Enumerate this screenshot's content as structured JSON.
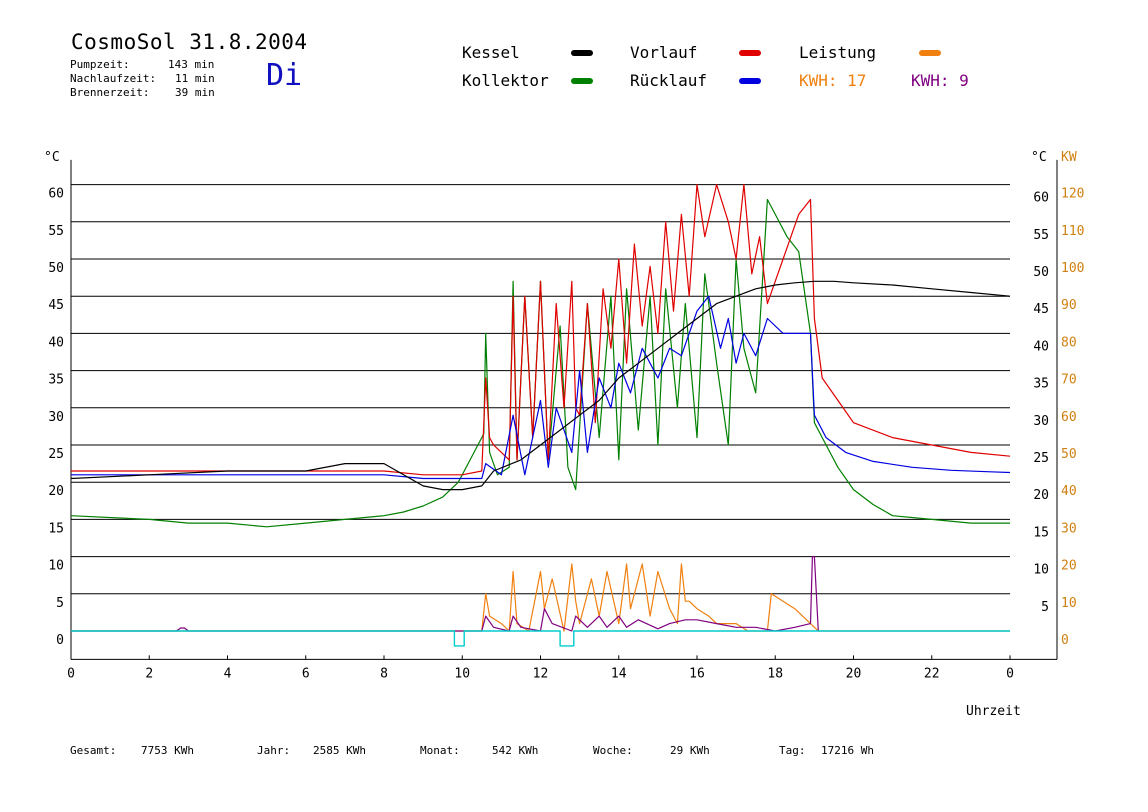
{
  "header": {
    "title": "CosmoSol 31.8.2004",
    "day": "Di",
    "stats": [
      {
        "label": "Pumpzeit:",
        "value": "143 min"
      },
      {
        "label": "Nachlaufzeit:",
        "value": "11 min"
      },
      {
        "label": "Brennerzeit:",
        "value": "39 min"
      }
    ]
  },
  "legend": {
    "kessel": "Kessel",
    "kollektor": "Kollektor",
    "vorlauf": "Vorlauf",
    "ruecklauf": "Rücklauf",
    "leistung": "Leistung",
    "kwh1": "KWH: 17",
    "kwh2": "KWH: 9"
  },
  "footer": {
    "gesamt_label": "Gesamt:",
    "gesamt_value": "7753 KWh",
    "jahr_label": "Jahr:",
    "jahr_value": "2585 KWh",
    "monat_label": "Monat:",
    "monat_value": "542 KWh",
    "woche_label": "Woche:",
    "woche_value": "29 KWh",
    "tag_label": "Tag:",
    "tag_value": "17216 Wh"
  },
  "colors": {
    "kessel": "#000000",
    "kollektor": "#008000",
    "vorlauf": "#e00000",
    "ruecklauf": "#0000e0",
    "leistung": "#f08010",
    "kwh2": "#800080",
    "pump": "#00cccc",
    "day": "#1010c0"
  },
  "chart_data": {
    "type": "line",
    "xlabel": "Uhrzeit",
    "ylabel_left": "°C",
    "ylabel_right": "°C",
    "ylabel_right2": "KW",
    "xlim": [
      0,
      24
    ],
    "ylim": [
      -3,
      64
    ],
    "x_ticks": [
      "0",
      "2",
      "4",
      "6",
      "8",
      "10",
      "12",
      "14",
      "16",
      "18",
      "20",
      "22",
      "0"
    ],
    "y_ticks_left": [
      0,
      5,
      10,
      15,
      20,
      25,
      30,
      35,
      40,
      45,
      50,
      55,
      60
    ],
    "y_ticks_right": [
      5,
      10,
      15,
      20,
      25,
      30,
      35,
      40,
      45,
      50,
      55,
      60
    ],
    "y_ticks_kw": [
      0,
      10,
      20,
      30,
      40,
      50,
      60,
      70,
      80,
      90,
      100,
      110,
      120
    ],
    "gridlines": [
      5,
      10,
      15,
      20,
      25,
      30,
      35,
      40,
      45,
      50,
      55,
      60
    ],
    "series": [
      {
        "name": "Kollektor",
        "color": "#008000",
        "x": [
          0,
          2,
          3,
          4,
          5,
          6,
          7,
          8,
          8.5,
          9,
          9.5,
          9.9,
          10.2,
          10.4,
          10.55,
          10.6,
          10.7,
          10.9,
          11.2,
          11.3,
          11.4,
          11.6,
          11.8,
          12,
          12.2,
          12.5,
          12.7,
          12.9,
          13.2,
          13.5,
          13.8,
          14,
          14.2,
          14.5,
          14.8,
          15,
          15.2,
          15.5,
          15.7,
          16,
          16.2,
          16.5,
          16.8,
          17,
          17.2,
          17.5,
          17.8,
          18,
          18.3,
          18.6,
          18.9,
          19,
          19.2,
          19.6,
          20,
          20.5,
          21,
          22,
          23,
          24
        ],
        "y": [
          15.5,
          15,
          14.5,
          14.5,
          14,
          14.5,
          15,
          15.5,
          16,
          16.8,
          18,
          20,
          23,
          25,
          26.5,
          40,
          24,
          21,
          22,
          47,
          23,
          45,
          26,
          47,
          23,
          41,
          22,
          19,
          44,
          26,
          45,
          23,
          46,
          27,
          45,
          25,
          46,
          30,
          44,
          26,
          48,
          36,
          25,
          50,
          38,
          32,
          58,
          56,
          53,
          51,
          40,
          28,
          26,
          22,
          19,
          17,
          15.5,
          15,
          14.5,
          14.5
        ]
      },
      {
        "name": "Vorlauf",
        "color": "#e00000",
        "x": [
          0,
          4,
          8,
          9,
          10,
          10.5,
          10.6,
          10.7,
          10.8,
          11,
          11.2,
          11.3,
          11.4,
          11.6,
          11.8,
          12,
          12.2,
          12.4,
          12.6,
          12.8,
          12.9,
          13,
          13.2,
          13.4,
          13.6,
          13.8,
          14,
          14.2,
          14.4,
          14.6,
          14.8,
          15,
          15.2,
          15.4,
          15.6,
          15.8,
          16,
          16.2,
          16.5,
          16.8,
          17,
          17.2,
          17.4,
          17.6,
          17.8,
          18.2,
          18.6,
          18.9,
          19,
          19.2,
          19.6,
          20,
          21,
          22,
          23,
          24
        ],
        "y": [
          21.5,
          21.5,
          21.5,
          21,
          21,
          21.5,
          34,
          26,
          25,
          24,
          23,
          45,
          23,
          45,
          26,
          47,
          23,
          44,
          30,
          47,
          30,
          29,
          44,
          28,
          46,
          38,
          50,
          36,
          52,
          41,
          49,
          40,
          55,
          43,
          56,
          45,
          60,
          53,
          60,
          55,
          50,
          60,
          48,
          53,
          44,
          50,
          56,
          58,
          42,
          34,
          31,
          28,
          26,
          25,
          24,
          23.5
        ]
      },
      {
        "name": "Rücklauf",
        "color": "#0000e0",
        "x": [
          0,
          4,
          8,
          9,
          10,
          10.5,
          10.6,
          11,
          11.3,
          11.6,
          12,
          12.2,
          12.4,
          12.6,
          12.8,
          13,
          13.2,
          13.5,
          13.8,
          14,
          14.3,
          14.6,
          15,
          15.3,
          15.6,
          16,
          16.3,
          16.6,
          16.8,
          17,
          17.2,
          17.5,
          17.8,
          18.2,
          18.6,
          18.9,
          19,
          19.3,
          19.8,
          20.5,
          21.5,
          22.5,
          23.5,
          24
        ],
        "y": [
          21,
          21,
          21,
          20.5,
          20.5,
          20.5,
          22.5,
          21,
          29,
          21,
          31,
          22,
          30,
          27,
          24,
          35,
          24,
          34,
          30,
          36,
          32,
          38,
          34,
          38,
          37,
          43,
          45,
          38,
          42,
          36,
          40,
          37,
          42,
          40,
          40,
          40,
          29,
          26,
          24,
          22.8,
          22,
          21.6,
          21.4,
          21.3
        ]
      },
      {
        "name": "Kessel",
        "color": "#000000",
        "x": [
          0,
          2,
          4,
          6,
          7,
          8,
          9,
          9.5,
          10,
          10.5,
          10.8,
          11.5,
          12,
          12.5,
          13,
          13.5,
          14,
          14.5,
          15,
          15.5,
          16,
          16.5,
          17,
          17.5,
          18,
          18.5,
          19,
          19.5,
          20,
          21,
          22,
          23,
          24
        ],
        "y": [
          20.5,
          21,
          21.5,
          21.5,
          22.5,
          22.5,
          19.5,
          19,
          19,
          19.5,
          21.5,
          23,
          25,
          27,
          29,
          31,
          34,
          36,
          38,
          40,
          42,
          44,
          45,
          46,
          46.5,
          46.8,
          47,
          47,
          46.8,
          46.5,
          46,
          45.5,
          45
        ]
      },
      {
        "name": "Leistung",
        "color": "#f08010",
        "x": [
          0,
          10.5,
          10.6,
          10.7,
          11,
          11.2,
          11.3,
          11.4,
          11.7,
          12,
          12.1,
          12.3,
          12.6,
          12.8,
          12.9,
          13,
          13.3,
          13.5,
          13.7,
          14,
          14.2,
          14.3,
          14.6,
          14.8,
          15,
          15.3,
          15.5,
          15.6,
          15.7,
          15.8,
          16,
          16.3,
          16.5,
          16.7,
          17,
          17.3,
          17.5,
          17.8,
          17.9,
          18.5,
          19,
          19.1,
          24
        ],
        "y": [
          0,
          0,
          5,
          2,
          1,
          0,
          8,
          1,
          0,
          8,
          3,
          7,
          0,
          9,
          4,
          1,
          7,
          2,
          8,
          1,
          9,
          3,
          9,
          2,
          8,
          3,
          1,
          9,
          4,
          4,
          3,
          2,
          1,
          1,
          1,
          0,
          0,
          0,
          5,
          3,
          0.5,
          0,
          0
        ]
      },
      {
        "name": "Leistung KWH 2",
        "color": "#800080",
        "x": [
          0,
          2.7,
          2.8,
          2.9,
          3,
          10.5,
          10.6,
          10.8,
          11.2,
          11.3,
          11.5,
          12,
          12.1,
          12.3,
          12.8,
          12.9,
          13.2,
          13.5,
          13.7,
          14,
          14.2,
          14.5,
          15,
          15.3,
          15.7,
          16,
          16.5,
          17,
          17.5,
          18,
          18.5,
          18.9,
          18.95,
          19,
          19.1
        ],
        "y": [
          0,
          0,
          0.4,
          0.4,
          0,
          0,
          2,
          0.5,
          0,
          2,
          0.5,
          0,
          3,
          1,
          0,
          2,
          0.5,
          2,
          0.5,
          2,
          0.5,
          1.5,
          0.3,
          1,
          1.5,
          1.5,
          1,
          0.5,
          0.5,
          0,
          0.5,
          1,
          10,
          10,
          0
        ]
      },
      {
        "name": "Pumpe",
        "color": "#00cccc",
        "x": [
          0,
          9.8,
          9.8,
          10.05,
          10.05,
          12.5,
          12.5,
          12.85,
          12.85,
          24
        ],
        "y": [
          0,
          0,
          -2,
          -2,
          0,
          0,
          -2,
          -2,
          0,
          0
        ]
      }
    ]
  }
}
